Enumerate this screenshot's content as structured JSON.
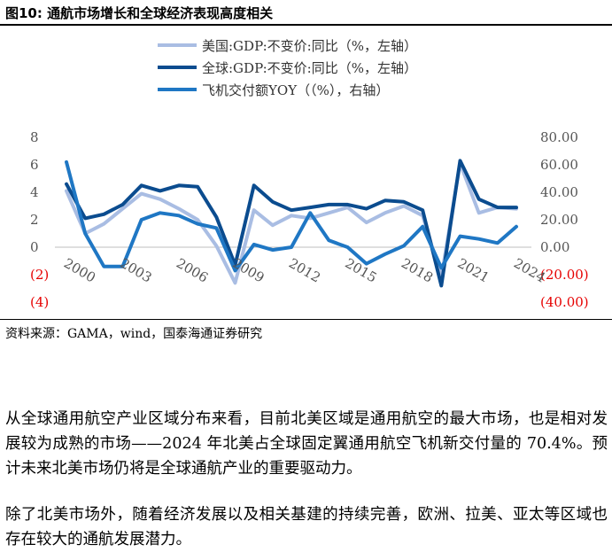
{
  "figure": {
    "title": "图10:  通航市场增长和全球经济表现高度相关",
    "source": "资料来源：GAMA，wind，国泰海通证券研究"
  },
  "chart_data": {
    "type": "line",
    "x": [
      2000,
      2001,
      2002,
      2003,
      2004,
      2005,
      2006,
      2007,
      2008,
      2009,
      2010,
      2011,
      2012,
      2013,
      2014,
      2015,
      2016,
      2017,
      2018,
      2019,
      2020,
      2021,
      2022,
      2023,
      2024
    ],
    "x_ticks": [
      "2000",
      "2003",
      "2006",
      "2009",
      "2012",
      "2015",
      "2018",
      "2021",
      "2024"
    ],
    "y_left_ticks": [
      "8",
      "6",
      "4",
      "2",
      "0",
      "(2)",
      "(4)"
    ],
    "y_right_ticks": [
      "80.00",
      "60.00",
      "40.00",
      "20.00",
      "0.00",
      "(20.00)",
      "(40.00)"
    ],
    "ylim_left": [
      -4,
      8
    ],
    "ylim_right": [
      -40,
      80
    ],
    "negative_tick_color": "#e60000",
    "legend_position": "top",
    "series": [
      {
        "name": "美国:GDP:不变价:同比（%，左轴）",
        "axis": "left",
        "color": "#a9bde3",
        "values": [
          4.1,
          1.0,
          1.7,
          2.8,
          3.9,
          3.5,
          2.8,
          2.0,
          0.1,
          -2.6,
          2.7,
          1.6,
          2.3,
          2.1,
          2.5,
          2.9,
          1.8,
          2.5,
          3.0,
          2.3,
          -2.2,
          6.1,
          2.5,
          2.9,
          2.8
        ]
      },
      {
        "name": "全球:GDP:不变价:同比（%，左轴）",
        "axis": "left",
        "color": "#0b4c8f",
        "values": [
          4.6,
          2.1,
          2.4,
          3.1,
          4.5,
          4.1,
          4.5,
          4.4,
          2.2,
          -1.3,
          4.5,
          3.3,
          2.7,
          2.9,
          3.1,
          3.1,
          2.8,
          3.4,
          3.3,
          2.7,
          -2.8,
          6.3,
          3.5,
          2.9,
          2.9
        ]
      },
      {
        "name": "飞机交付额YOY（（%），右轴）",
        "axis": "right",
        "color": "#1f77c4",
        "values": [
          62,
          10,
          -14,
          -14,
          20,
          25,
          23,
          17,
          14,
          -17,
          2,
          -2,
          0,
          25,
          5,
          0,
          -12,
          -5,
          1,
          15,
          -15,
          8,
          6,
          3,
          15
        ]
      }
    ]
  },
  "body": {
    "paragraph_1": "从全球通用航空产业区域分布来看，目前北美区域是通用航空的最大市场，也是相对发展较为成熟的市场——2024 年北美占全球固定翼通用航空飞机新交付量的 70.4%。预计未来北美市场仍将是全球通航产业的重要驱动力。",
    "paragraph_2": "除了北美市场外，随着经济发展以及相关基建的持续完善，欧洲、拉美、亚太等区域也存在较大的通航发展潜力。"
  }
}
